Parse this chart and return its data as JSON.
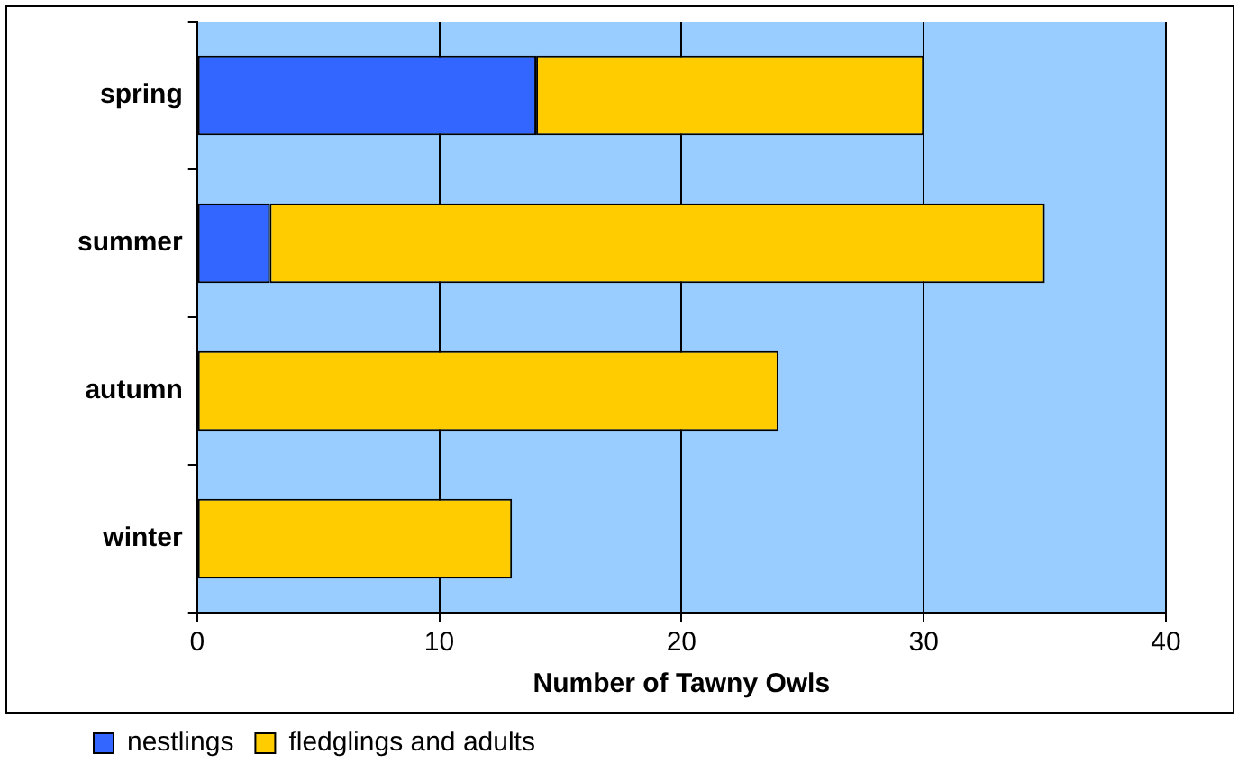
{
  "chart_data": {
    "type": "bar",
    "orientation": "horizontal",
    "stacked": true,
    "xlabel": "Number of Tawny Owls",
    "categories": [
      "spring",
      "summer",
      "autumn",
      "winter"
    ],
    "series": [
      {
        "name": "nestlings",
        "color": "#3366ff",
        "values": [
          14,
          3,
          0,
          0
        ]
      },
      {
        "name": "fledglings and adults",
        "color": "#ffcc00",
        "values": [
          16,
          32,
          24,
          13
        ]
      }
    ],
    "xlim": [
      0,
      40
    ],
    "xticks": [
      0,
      10,
      20,
      30,
      40
    ],
    "grid": "x",
    "legend": "bottom left"
  }
}
